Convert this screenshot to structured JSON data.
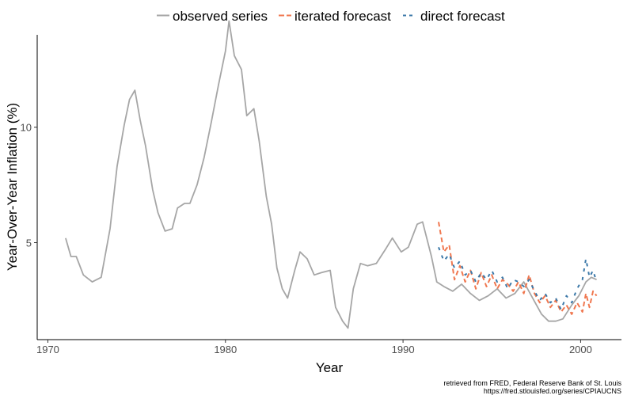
{
  "chart_data": {
    "type": "line",
    "xlabel": "Year",
    "ylabel": "Year-Over-Year Inflation (%)",
    "xlim": [
      1969.4,
      2002.3
    ],
    "ylim": [
      0.8,
      14.0
    ],
    "x_ticks": [
      1970,
      1980,
      1990,
      2000
    ],
    "x_tick_labels": [
      "1970",
      "1980",
      "1990",
      "2000"
    ],
    "y_ticks": [
      5,
      10
    ],
    "y_tick_labels": [
      "5",
      "10"
    ],
    "grid": false,
    "legend_position": "top",
    "caption": [
      "retrieved from FRED, Federal Reserve Bank of St. Louis",
      "https://fred.stlouisfed.org/series/CPIAUCNS"
    ],
    "series": [
      {
        "name": "observed series",
        "color": "#a6a6a6",
        "dash": "solid",
        "points": [
          [
            1971.0,
            5.2
          ],
          [
            1971.3,
            4.4
          ],
          [
            1971.6,
            4.4
          ],
          [
            1972.0,
            3.6
          ],
          [
            1972.5,
            3.3
          ],
          [
            1973.0,
            3.5
          ],
          [
            1973.5,
            5.6
          ],
          [
            1973.9,
            8.3
          ],
          [
            1974.3,
            10.1
          ],
          [
            1974.6,
            11.2
          ],
          [
            1974.9,
            11.6
          ],
          [
            1975.2,
            10.3
          ],
          [
            1975.5,
            9.2
          ],
          [
            1975.9,
            7.3
          ],
          [
            1976.2,
            6.3
          ],
          [
            1976.6,
            5.5
          ],
          [
            1977.0,
            5.6
          ],
          [
            1977.3,
            6.5
          ],
          [
            1977.7,
            6.7
          ],
          [
            1978.0,
            6.7
          ],
          [
            1978.4,
            7.5
          ],
          [
            1978.8,
            8.7
          ],
          [
            1979.2,
            10.2
          ],
          [
            1979.6,
            11.8
          ],
          [
            1980.0,
            13.3
          ],
          [
            1980.2,
            14.6
          ],
          [
            1980.5,
            13.1
          ],
          [
            1980.9,
            12.5
          ],
          [
            1981.2,
            10.5
          ],
          [
            1981.6,
            10.8
          ],
          [
            1981.9,
            9.4
          ],
          [
            1982.3,
            7.0
          ],
          [
            1982.6,
            5.8
          ],
          [
            1982.9,
            3.9
          ],
          [
            1983.2,
            3.0
          ],
          [
            1983.5,
            2.6
          ],
          [
            1983.9,
            3.8
          ],
          [
            1984.2,
            4.6
          ],
          [
            1984.6,
            4.3
          ],
          [
            1985.0,
            3.6
          ],
          [
            1985.4,
            3.7
          ],
          [
            1985.9,
            3.8
          ],
          [
            1986.2,
            2.2
          ],
          [
            1986.6,
            1.6
          ],
          [
            1986.9,
            1.3
          ],
          [
            1987.2,
            3.0
          ],
          [
            1987.6,
            4.1
          ],
          [
            1988.0,
            4.0
          ],
          [
            1988.5,
            4.1
          ],
          [
            1989.0,
            4.7
          ],
          [
            1989.4,
            5.2
          ],
          [
            1989.9,
            4.6
          ],
          [
            1990.3,
            4.8
          ],
          [
            1990.8,
            5.8
          ],
          [
            1991.1,
            5.9
          ],
          [
            1991.6,
            4.4
          ],
          [
            1991.9,
            3.3
          ],
          [
            1992.3,
            3.1
          ],
          [
            1992.8,
            2.9
          ],
          [
            1993.3,
            3.2
          ],
          [
            1993.8,
            2.8
          ],
          [
            1994.3,
            2.5
          ],
          [
            1994.8,
            2.7
          ],
          [
            1995.3,
            3.0
          ],
          [
            1995.8,
            2.6
          ],
          [
            1996.3,
            2.8
          ],
          [
            1996.8,
            3.3
          ],
          [
            1997.3,
            2.6
          ],
          [
            1997.8,
            1.9
          ],
          [
            1998.2,
            1.6
          ],
          [
            1998.6,
            1.6
          ],
          [
            1999.0,
            1.7
          ],
          [
            1999.5,
            2.3
          ],
          [
            1999.9,
            2.7
          ],
          [
            2000.3,
            3.3
          ],
          [
            2000.6,
            3.5
          ],
          [
            2000.9,
            3.4
          ]
        ]
      },
      {
        "name": "iterated forecast",
        "color": "#f0774f",
        "dash": "dashed",
        "points": [
          [
            1992.0,
            5.9
          ],
          [
            1992.3,
            4.6
          ],
          [
            1992.6,
            4.9
          ],
          [
            1992.9,
            3.4
          ],
          [
            1993.2,
            4.0
          ],
          [
            1993.5,
            3.3
          ],
          [
            1993.8,
            3.8
          ],
          [
            1994.1,
            3.0
          ],
          [
            1994.4,
            3.7
          ],
          [
            1994.7,
            3.1
          ],
          [
            1995.0,
            3.6
          ],
          [
            1995.3,
            3.0
          ],
          [
            1995.6,
            3.4
          ],
          [
            1995.9,
            3.2
          ],
          [
            1996.2,
            2.9
          ],
          [
            1996.5,
            3.3
          ],
          [
            1996.8,
            2.8
          ],
          [
            1997.1,
            3.6
          ],
          [
            1997.4,
            2.8
          ],
          [
            1997.7,
            2.4
          ],
          [
            1998.0,
            2.7
          ],
          [
            1998.3,
            2.2
          ],
          [
            1998.6,
            2.5
          ],
          [
            1998.9,
            2.0
          ],
          [
            1999.2,
            2.3
          ],
          [
            1999.5,
            1.9
          ],
          [
            1999.8,
            2.4
          ],
          [
            2000.1,
            2.0
          ],
          [
            2000.3,
            2.8
          ],
          [
            2000.5,
            2.2
          ],
          [
            2000.7,
            2.9
          ],
          [
            2000.9,
            2.7
          ]
        ]
      },
      {
        "name": "direct forecast",
        "color": "#3b78a8",
        "dash": "longdash",
        "points": [
          [
            1992.0,
            4.8
          ],
          [
            1992.3,
            4.2
          ],
          [
            1992.6,
            4.5
          ],
          [
            1992.9,
            3.9
          ],
          [
            1993.2,
            4.2
          ],
          [
            1993.5,
            3.6
          ],
          [
            1993.8,
            3.8
          ],
          [
            1994.1,
            3.3
          ],
          [
            1994.4,
            3.7
          ],
          [
            1994.7,
            3.4
          ],
          [
            1995.0,
            3.8
          ],
          [
            1995.3,
            3.3
          ],
          [
            1995.6,
            3.5
          ],
          [
            1995.9,
            3.0
          ],
          [
            1996.2,
            3.4
          ],
          [
            1996.5,
            3.3
          ],
          [
            1996.8,
            3.1
          ],
          [
            1997.1,
            3.4
          ],
          [
            1997.4,
            2.9
          ],
          [
            1997.7,
            2.5
          ],
          [
            1998.0,
            2.8
          ],
          [
            1998.3,
            2.4
          ],
          [
            1998.6,
            2.6
          ],
          [
            1998.9,
            2.1
          ],
          [
            1999.2,
            2.7
          ],
          [
            1999.5,
            2.4
          ],
          [
            1999.8,
            3.0
          ],
          [
            2000.1,
            3.4
          ],
          [
            2000.3,
            4.3
          ],
          [
            2000.5,
            3.5
          ],
          [
            2000.7,
            3.8
          ],
          [
            2000.9,
            3.3
          ]
        ]
      }
    ]
  }
}
